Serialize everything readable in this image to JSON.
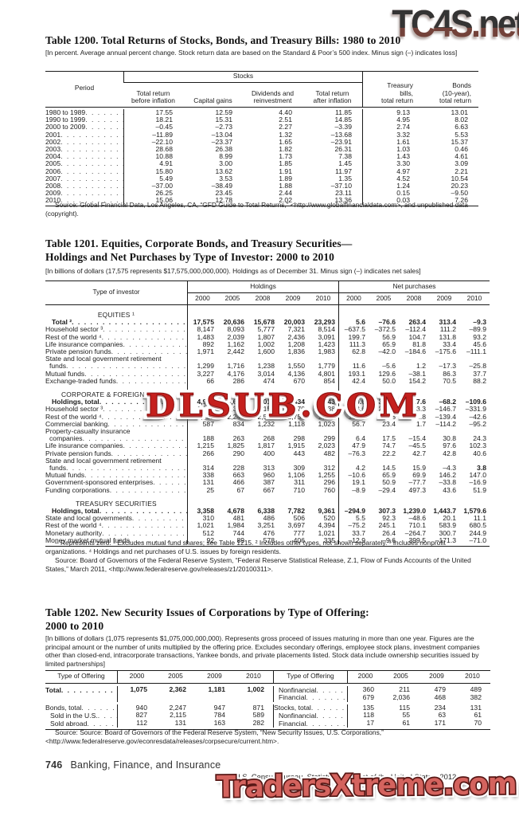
{
  "watermarks": {
    "top": "TC4S.net",
    "middle": "DLSUB.COM",
    "bottom": "TradersXtreme.com"
  },
  "colors": {
    "watermark_red": "#c5201d",
    "watermark_salmon": "#d4635e",
    "watermark_gray": "#343434",
    "watermark_brown": "#73423a",
    "rule": "#1a1a1a"
  },
  "footer": {
    "page_number": "746",
    "section": "Banking, Finance, and Insurance",
    "credit": "U.S. Census Bureau, Statistical Abstract of the United States: 2012"
  },
  "t1200": {
    "title": "Table 1200. Total Returns of Stocks, Bonds, and Treasury Bills: 1980 to 2010",
    "note": "[In percent. Average annual percent change. Stock return data are based on the Standard & Poor’s 500 index. Minus sign (–)\nindicates loss]",
    "stub_header": "Period",
    "group_header": "Stocks",
    "columns": [
      "Total return\nbefore inflation",
      "Capital gains",
      "Dividends and\nreinvestment",
      "Total return\nafter inflation",
      "Treasury\nbills,\ntotal return",
      "Bonds\n(10-year),\ntotal return"
    ],
    "rows": [
      {
        "label": "1980 to 1989",
        "values": [
          "17.55",
          "12.59",
          "4.40",
          "11.85",
          "9.13",
          "13.01"
        ]
      },
      {
        "label": "1990 to 1999",
        "values": [
          "18.21",
          "15.31",
          "2.51",
          "14.85",
          "4.95",
          "8.02"
        ]
      },
      {
        "label": "2000 to 2009",
        "values": [
          "–0.45",
          "–2.73",
          "2.27",
          "–3.39",
          "2.74",
          "6.63"
        ]
      },
      {
        "label": "2001",
        "values": [
          "–11.89",
          "–13.04",
          "1.32",
          "–13.68",
          "3.32",
          "5.53"
        ]
      },
      {
        "label": "2002",
        "values": [
          "–22.10",
          "–23.37",
          "1.65",
          "–23.91",
          "1.61",
          "15.37"
        ]
      },
      {
        "label": "2003",
        "values": [
          "28.68",
          "26.38",
          "1.82",
          "26.31",
          "1.03",
          "0.46"
        ]
      },
      {
        "label": "2004",
        "values": [
          "10.88",
          "8.99",
          "1.73",
          "7.38",
          "1.43",
          "4.61"
        ]
      },
      {
        "label": "2005",
        "values": [
          "4.91",
          "3.00",
          "1.85",
          "1.45",
          "3.30",
          "3.09"
        ]
      },
      {
        "label": "2006",
        "values": [
          "15.80",
          "13.62",
          "1.91",
          "11.97",
          "4.97",
          "2.21"
        ]
      },
      {
        "label": "2007",
        "values": [
          "5.49",
          "3.53",
          "1.89",
          "1.35",
          "4.52",
          "10.54"
        ]
      },
      {
        "label": "2008",
        "values": [
          "–37.00",
          "–38.49",
          "1.88",
          "–37.10",
          "1.24",
          "20.23"
        ]
      },
      {
        "label": "2009",
        "values": [
          "26.25",
          "23.45",
          "2.44",
          "23.11",
          "0.15",
          "–9.50"
        ]
      },
      {
        "label": "2010",
        "values": [
          "15.06",
          "12.78",
          "2.02",
          "13.36",
          "0.03",
          "7.26"
        ]
      }
    ],
    "source": "Source: Global Financial Data, Los Angeles, CA, “GFD Guide to Total Returns,” <http://www.globalfinancialdata.com>, and unpublished data (copyright)."
  },
  "t1201": {
    "title": "Table 1201. Equities, Corporate Bonds, and Treasury Securities—\nHoldings and Net Purchases by Type of Investor: 2000 to 2010",
    "note": "[In billions of dollars (17,575 represents $17,575,000,000,000). Holdings as of December 31. Minus sign (–) indicates net sales]",
    "stub_header": "Type of investor",
    "groups": {
      "holdings": "Holdings",
      "net": "Net purchases"
    },
    "years": [
      "2000",
      "2005",
      "2008",
      "2009",
      "2010"
    ],
    "rows": [
      {
        "type": "sec",
        "label": "EQUITIES ¹"
      },
      {
        "label": "Total ²",
        "bold": true,
        "ind": 8,
        "h": [
          "17,575",
          "20,636",
          "15,678",
          "20,003",
          "23,293"
        ],
        "n": [
          "5.6",
          "–76.6",
          "263.4",
          "313.4",
          "–9.3"
        ]
      },
      {
        "label": "Household sector ³",
        "h": [
          "8,147",
          "8,093",
          "5,777",
          "7,321",
          "8,514"
        ],
        "n": [
          "–637.5",
          "–372.5",
          "–112.4",
          "111.2",
          "–89.9"
        ]
      },
      {
        "label": "Rest of the world ⁴",
        "h": [
          "1,483",
          "2,039",
          "1,807",
          "2,436",
          "3,091"
        ],
        "n": [
          "199.7",
          "56.9",
          "104.7",
          "131.8",
          "93.2"
        ]
      },
      {
        "label": "Life insurance companies",
        "h": [
          "892",
          "1,162",
          "1,002",
          "1,208",
          "1,423"
        ],
        "n": [
          "111.3",
          "65.9",
          "81.8",
          "33.4",
          "45.6"
        ]
      },
      {
        "label": "Private pension funds",
        "h": [
          "1,971",
          "2,442",
          "1,600",
          "1,836",
          "1,983"
        ],
        "n": [
          "62.8",
          "–42.0",
          "–184.6",
          "–175.6",
          "–111.1"
        ]
      },
      {
        "type": "labelonly",
        "label": "State and local government retirement"
      },
      {
        "label": "funds",
        "ind": 5,
        "h": [
          "1,299",
          "1,716",
          "1,238",
          "1,550",
          "1,779"
        ],
        "n": [
          "11.6",
          "–5.6",
          "1.2",
          "–17.3",
          "–25.8"
        ]
      },
      {
        "label": "Mutual funds",
        "h": [
          "3,227",
          "4,176",
          "3,014",
          "4,136",
          "4,801"
        ],
        "n": [
          "193.1",
          "129.6",
          "–38.1",
          "86.3",
          "37.7"
        ]
      },
      {
        "label": "Exchange-traded funds",
        "h": [
          "66",
          "286",
          "474",
          "670",
          "854"
        ],
        "n": [
          "42.4",
          "50.0",
          "154.2",
          "70.5",
          "88.2"
        ]
      },
      {
        "type": "sec",
        "label": "CORPORATE & FOREIGN BONDS"
      },
      {
        "label": "Holdings, total",
        "bold": true,
        "ind": 8,
        "h": [
          "4,926",
          "9,604",
          "11,016",
          "11,434",
          "11,443"
        ],
        "n": [
          "350.6",
          "364.2",
          "–227.6",
          "–68.2",
          "–109.6"
        ]
      },
      {
        "label": "Household sector ³",
        "h": [
          "1,068",
          "2,325",
          "2,159",
          "2,470",
          "2,138"
        ],
        "n": [
          "93.6",
          "219.6",
          "–213.3",
          "–146.7",
          "–331.9"
        ]
      },
      {
        "label": "Rest of the world ⁴",
        "h": [
          "1,162",
          "2,244",
          "2,581",
          "2,754",
          "2,711"
        ],
        "n": [
          "181.3",
          "128.5",
          "–21.8",
          "–139.4",
          "–42.6"
        ]
      },
      {
        "label": "Commercial banking",
        "h": [
          "587",
          "834",
          "1,232",
          "1,118",
          "1,023"
        ],
        "n": [
          "56.7",
          "23.4",
          "1.7",
          "–114.2",
          "–95.2"
        ]
      },
      {
        "type": "labelonly",
        "label": "Property-casualty insurance"
      },
      {
        "label": "companies",
        "ind": 5,
        "h": [
          "188",
          "263",
          "268",
          "298",
          "299"
        ],
        "n": [
          "6.4",
          "17.5",
          "–15.4",
          "30.8",
          "24.3"
        ]
      },
      {
        "label": "Life insurance companies",
        "h": [
          "1,215",
          "1,825",
          "1,817",
          "1,915",
          "2,023"
        ],
        "n": [
          "47.9",
          "74.7",
          "–45.5",
          "97.6",
          "102.3"
        ]
      },
      {
        "label": "Private pension funds",
        "h": [
          "266",
          "290",
          "400",
          "443",
          "482"
        ],
        "n": [
          "–76.3",
          "22.2",
          "42.7",
          "42.8",
          "40.6"
        ]
      },
      {
        "type": "labelonly",
        "label": "State and local government retirement"
      },
      {
        "label": "funds",
        "ind": 5,
        "h": [
          "314",
          "228",
          "313",
          "309",
          "312"
        ],
        "n": [
          "4.2",
          "14.5",
          "15.9",
          "–4.3",
          "3.8"
        ],
        "nb": [
          4
        ]
      },
      {
        "label": "Mutual funds",
        "h": [
          "338",
          "663",
          "960",
          "1,106",
          "1,255"
        ],
        "n": [
          "–10.6",
          "65.9",
          "69.9",
          "146.2",
          "147.0"
        ]
      },
      {
        "label": "Government-sponsored enterprises",
        "h": [
          "131",
          "466",
          "387",
          "311",
          "296"
        ],
        "n": [
          "19.1",
          "50.9",
          "–77.7",
          "–33.8",
          "–16.9"
        ]
      },
      {
        "label": "Funding corporations",
        "h": [
          "25",
          "67",
          "667",
          "710",
          "760"
        ],
        "n": [
          "–8.9",
          "–29.4",
          "497.3",
          "43.6",
          "51.9"
        ]
      },
      {
        "type": "sec",
        "label": "TREASURY SECURITIES"
      },
      {
        "label": "Holdings, total",
        "bold": true,
        "ind": 8,
        "h": [
          "3,358",
          "4,678",
          "6,338",
          "7,782",
          "9,361"
        ],
        "n": [
          "–294.9",
          "307.3",
          "1,239.0",
          "1,443.7",
          "1,579.6"
        ]
      },
      {
        "label": "State and local governments",
        "h": [
          "310",
          "481",
          "486",
          "506",
          "520"
        ],
        "n": [
          "5.5",
          "92.3",
          "–48.6",
          "20.1",
          "11.1"
        ]
      },
      {
        "label": "Rest of the world ⁴",
        "h": [
          "1,021",
          "1,984",
          "3,251",
          "3,697",
          "4,394"
        ],
        "n": [
          "–75.2",
          "245.1",
          "710.1",
          "583.9",
          "680.5"
        ]
      },
      {
        "label": "Monetary authority",
        "h": [
          "512",
          "744",
          "476",
          "777",
          "1,021"
        ],
        "n": [
          "33.7",
          "26.4",
          "–264.7",
          "300.7",
          "244.9"
        ]
      },
      {
        "label": "Money market mutual funds",
        "h": [
          "92",
          "89",
          "578",
          "406",
          "335"
        ],
        "n": [
          "–12.9",
          "–9.6",
          "399.5",
          "–171.3",
          "–71.0"
        ]
      }
    ],
    "footnote": "– Represents zero. ¹ Excludes mutual fund shares; see Table 1215. ² Includes other types, not shown separately. ³ Includes nonprofit organizations. ⁴ Holdings and net purchases of U.S. issues by foreign residents.",
    "source": "Source: Board of Governors of the Federal Reserve System, “Federal Reserve Statistical Release, Z.1, Flow of Funds Accounts of the United States,” March 2011, <http://www.federalreserve.gov/releases/z1/20100311>."
  },
  "t1202": {
    "title": "Table 1202. New Security Issues of Corporations by Type of Offering:\n2000 to 2010",
    "note": "[In billions of dollars (1,075 represents $1,075,000,000,000). Represents gross proceed of issues maturing in more than one year. Figures are the principal amount or the number of units multiplied by the offering price. Excludes secondary offerings, employee stock plans, investment companies other than closed-end, intracorporate transactions, Yankee bonds, and private placements listed. Stock data include ownership securities issued by limited partnerships]",
    "stub_header": "Type of Offering",
    "years": [
      "2000",
      "2005",
      "2009",
      "2010"
    ],
    "rows": [
      {
        "l": {
          "label": "Total",
          "bold": true,
          "v": [
            "1,075",
            "2,362",
            "1,181",
            "1,002"
          ]
        },
        "r": {
          "label": "Nonfinancial",
          "ind": 1,
          "v": [
            "360",
            "211",
            "479",
            "489"
          ]
        }
      },
      {
        "l": null,
        "r": {
          "label": "Financial",
          "ind": 1,
          "v": [
            "679",
            "2,036",
            "468",
            "382"
          ]
        }
      },
      {
        "l": {
          "label": "Bonds, total",
          "v": [
            "940",
            "2,247",
            "947",
            "871"
          ]
        },
        "r": {
          "label": "Stocks, total",
          "v": [
            "135",
            "115",
            "234",
            "131"
          ]
        }
      },
      {
        "l": {
          "label": "Sold in the U.S.",
          "ind": 1,
          "v": [
            "827",
            "2,115",
            "784",
            "589"
          ]
        },
        "r": {
          "label": "Nonfinancial",
          "ind": 1,
          "v": [
            "118",
            "55",
            "63",
            "61"
          ]
        }
      },
      {
        "l": {
          "label": "Sold abroad",
          "ind": 1,
          "v": [
            "112",
            "131",
            "163",
            "282"
          ]
        },
        "r": {
          "label": "Financial",
          "ind": 1,
          "v": [
            "17",
            "61",
            "171",
            "70"
          ]
        }
      }
    ],
    "source": "Source: Source: Board of Governors of the Federal Reserve System, “New Security Issues, U.S. Corporations,” <http://www.federalreserve.gov/econresdata/releases/corpsecure/current.htm>."
  }
}
